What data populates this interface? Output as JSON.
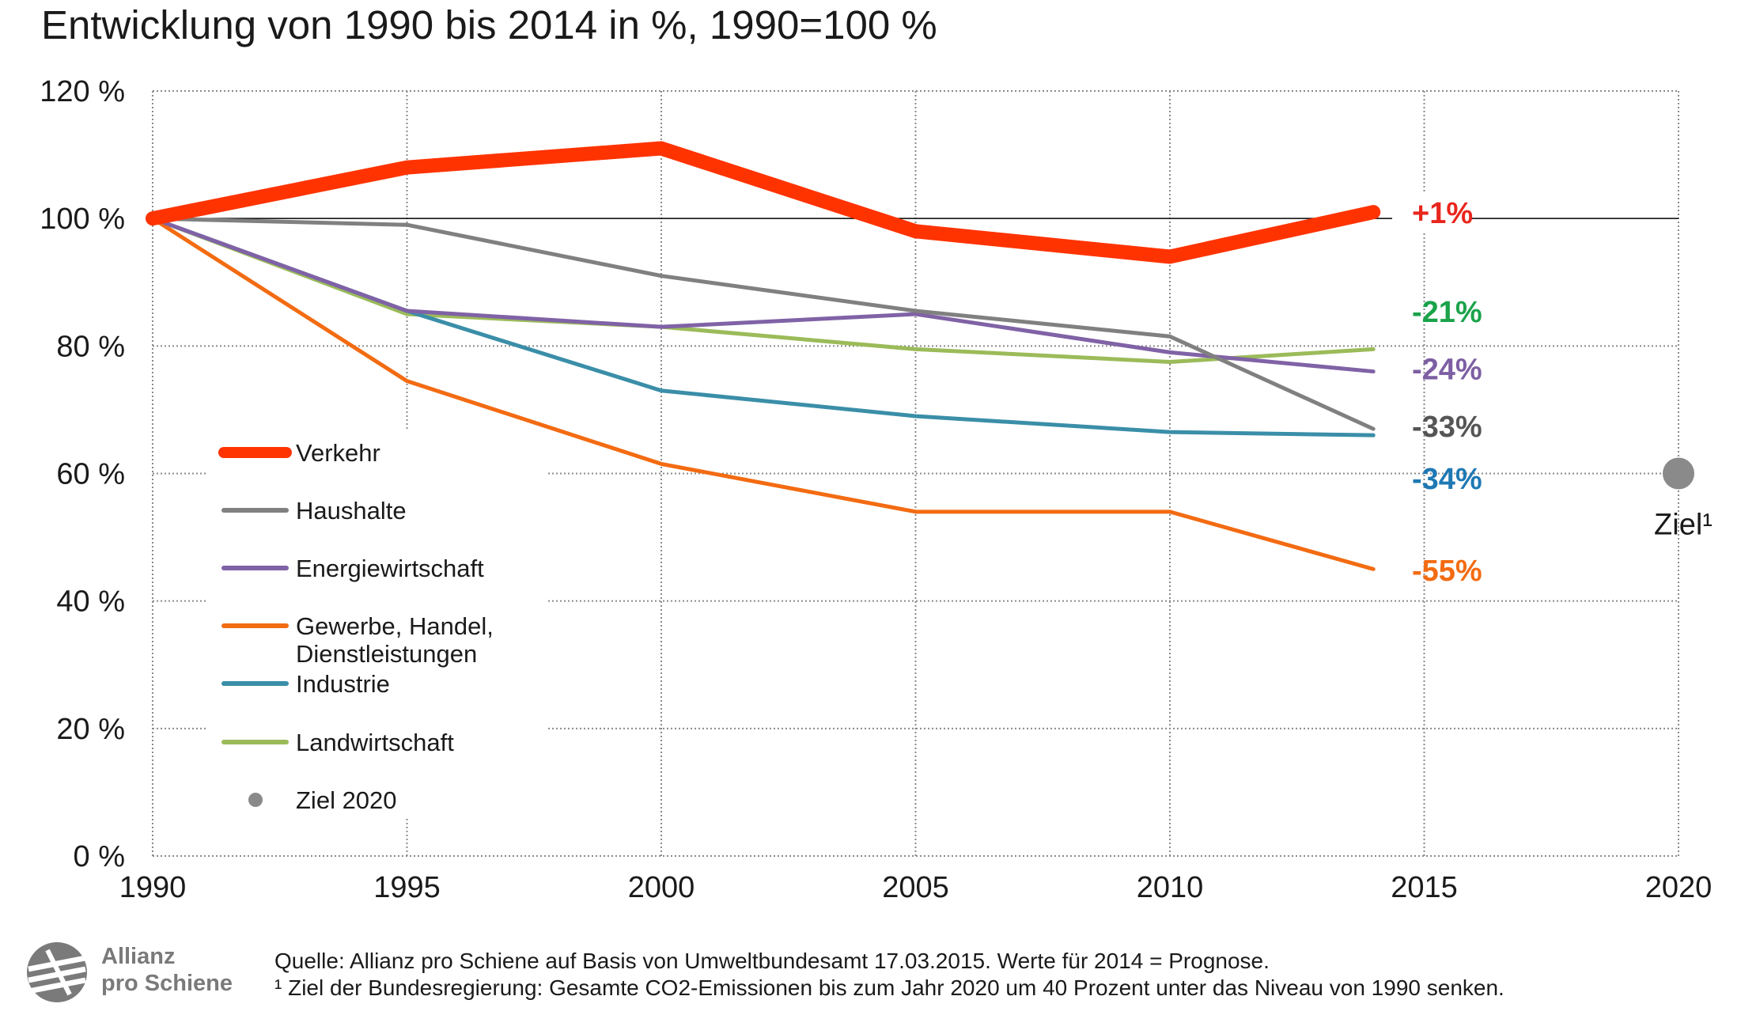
{
  "title": "Entwicklung von 1990 bis 2014 in %, 1990=100 %",
  "chart_data": {
    "type": "line",
    "title": "Entwicklung von 1990 bis 2014 in %, 1990=100 %",
    "xlabel": "",
    "ylabel": "",
    "xlim": [
      1990,
      2020
    ],
    "ylim": [
      0,
      120
    ],
    "x_ticks": [
      "1990",
      "1995",
      "2000",
      "2005",
      "2010",
      "2015",
      "2020"
    ],
    "y_ticks": [
      "0 %",
      "20 %",
      "40 %",
      "60 %",
      "80 %",
      "100 %",
      "120 %"
    ],
    "reference_line": 100,
    "grid": true,
    "legend_position": "left-center",
    "series": [
      {
        "name": "Verkehr",
        "color": "#ff3300",
        "x": [
          1990,
          1995,
          2000,
          2005,
          2010,
          2014
        ],
        "values": [
          100,
          108,
          111,
          98,
          94,
          101
        ],
        "end_label": "+1%",
        "end_label_color": "#e8261d"
      },
      {
        "name": "Haushalte",
        "color": "#808080",
        "x": [
          1990,
          1995,
          2000,
          2005,
          2010,
          2014
        ],
        "values": [
          100,
          99,
          91,
          85.5,
          81.5,
          67
        ],
        "end_label": "-33%",
        "end_label_color": "#555555"
      },
      {
        "name": "Energiewirtschaft",
        "color": "#8062a6",
        "x": [
          1990,
          1995,
          2000,
          2005,
          2010,
          2014
        ],
        "values": [
          100,
          85.5,
          83,
          85,
          79,
          76
        ],
        "end_label": "-24%",
        "end_label_color": "#7d5fa3"
      },
      {
        "name": "Gewerbe, Handel, Dienstleistungen",
        "color": "#f36b12",
        "x": [
          1990,
          1995,
          2000,
          2005,
          2010,
          2014
        ],
        "values": [
          100,
          74.5,
          61.5,
          54,
          54,
          45
        ],
        "end_label": "-55%",
        "end_label_color": "#f36b12"
      },
      {
        "name": "Industrie",
        "color": "#3a8ea8",
        "x": [
          1990,
          1995,
          2000,
          2005,
          2010,
          2014
        ],
        "values": [
          100,
          85.5,
          73,
          69,
          66.5,
          66
        ],
        "end_label": "-34%",
        "end_label_color": "#1f78b4"
      },
      {
        "name": "Landwirtschaft",
        "color": "#9bbb59",
        "x": [
          1990,
          1995,
          2000,
          2005,
          2010,
          2014
        ],
        "values": [
          100,
          85,
          83,
          79.5,
          77.5,
          79.5
        ],
        "end_label": "-21%",
        "end_label_color": "#1aa34a"
      }
    ],
    "target_point": {
      "name": "Ziel 2020",
      "x": 2020,
      "y": 60,
      "label": "Ziel¹",
      "color": "#8a8a8a"
    }
  },
  "footer": {
    "logo_line1": "Allianz",
    "logo_line2": "pro Schiene",
    "source": "Quelle: Allianz pro Schiene auf Basis von Umweltbundesamt 17.03.2015. Werte für 2014 = Prognose.",
    "footnote": "¹ Ziel der Bundesregierung: Gesamte CO2-Emissionen bis zum Jahr 2020 um 40 Prozent unter das Niveau von 1990 senken."
  }
}
